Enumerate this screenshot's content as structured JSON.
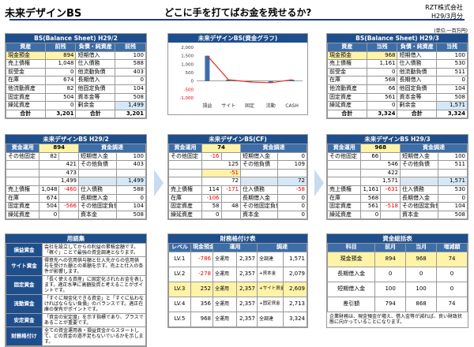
{
  "header": {
    "title": "未来デザインBS",
    "headline": "どこに手を打てばお金を残せるか?",
    "company": "RZT株式会社",
    "period": "H29/3月分",
    "unit": "(単位:一百万円)"
  },
  "bs_left": {
    "title": "BS(Balance Sheet)  H29/2",
    "cols": [
      "資産",
      "前残",
      "負債・純資産",
      "前残"
    ],
    "rows": [
      [
        "現金預金",
        "894",
        "短期借入",
        "100"
      ],
      [
        "売上債権",
        "1,048",
        "仕入債務",
        "588"
      ],
      [
        "前受金",
        "0",
        "他流動負債",
        "403"
      ],
      [
        "在庫",
        "674",
        "長期借入",
        "0"
      ],
      [
        "他流動資産",
        "82",
        "他固定負債",
        "104"
      ],
      [
        "固定資産",
        "504",
        "資本金等",
        "508"
      ],
      [
        "繰延資産",
        "0",
        "剰余金",
        "1,499"
      ],
      [
        "合計",
        "3,201",
        "合計",
        "3,201"
      ]
    ]
  },
  "bs_right": {
    "title": "BS(Balance Sheet)  H29/3",
    "cols": [
      "資産",
      "当残",
      "負債・純資産",
      "当残"
    ],
    "rows": [
      [
        "現金預金",
        "968",
        "短期借入",
        "100"
      ],
      [
        "売上債権",
        "1,161",
        "仕入債務",
        "530"
      ],
      [
        "前受金",
        "0",
        "他流動負債",
        "511"
      ],
      [
        "在庫",
        "568",
        "長期借入",
        "0"
      ],
      [
        "他流動資産",
        "66",
        "他固定負債",
        "104"
      ],
      [
        "固定資産",
        "561",
        "資本金等",
        "508"
      ],
      [
        "繰延資産",
        "0",
        "剰余金",
        "1,571"
      ],
      [
        "合計",
        "3,324",
        "合計",
        "3,324"
      ]
    ]
  },
  "graph": {
    "title": "未来デザインBS(資金グラフ)"
  },
  "chart_data": {
    "type": "bar",
    "categories": [
      "損益",
      "サイト",
      "固定",
      "流動",
      "CASH"
    ],
    "series": [
      {
        "name": "",
        "values": [
          1499,
          72,
          -57,
          -106,
          74
        ]
      }
    ],
    "line_values": [
      1499,
      72,
      -57,
      -106,
      74
    ],
    "ylim": [
      -1000,
      2000
    ],
    "yticks": [
      "2,000",
      "1,500",
      "1,000",
      "500",
      "0",
      "-500",
      "-1,000"
    ],
    "ytick_values": [
      2000,
      1500,
      1000,
      500,
      0,
      -500,
      -1000
    ]
  },
  "mid_left": {
    "title": "未来デザインBS  H29/2",
    "a_label": "資金運用",
    "a_val": "894",
    "b_label": "資金調達",
    "other_fixed": "82",
    "v421": "421",
    "tanki_label": "短期借入金",
    "tanki": "100",
    "ta_label": "その他負債",
    "ta": "403",
    "v473": "473",
    "v1499a": "1,499",
    "v1499b": "1,499",
    "uri_label": "売上債権",
    "uri_prev": "1,048",
    "uri_diff": "-460",
    "shi_label": "仕入債務",
    "shi": "588",
    "zai_label": "在庫",
    "zai": "674",
    "choki_label": "長期借入金",
    "choki": "0",
    "kotei_label": "固定資産",
    "kotei": "504",
    "kotei_diff": "-566",
    "tafu_label": "その他固定負債",
    "tafu": "104",
    "kurinobe_label": "繰延資産",
    "kurinobe": "0",
    "shihon_label": "資本金",
    "shihon": "508",
    "ofa_label": "その他固定"
  },
  "mid_center": {
    "title": "未来デザインBS(CF)",
    "a_label": "資金運用",
    "a_val": "74",
    "b_label": "資金調達",
    "ofa_label": "その他固定",
    "ofa": "-16",
    "v125": "125",
    "tanki_label": "短期借入金",
    "tanki": "0",
    "ta_label": "その他負債",
    "ta": "109",
    "v51": "-51",
    "v72a": "72",
    "v72b": "72",
    "uri_label": "売上債権",
    "uri": "114",
    "uri_diff": "-171",
    "shi_label": "仕入債務",
    "shi": "-58",
    "zai_label": "在庫",
    "zai": "-106",
    "choki_label": "長期借入金",
    "choki": "0",
    "kotei_label": "固定資産",
    "kotei": "58",
    "kotei_diff": "48",
    "tafu_label": "その他固定負債",
    "tafu": "0",
    "kurinobe_label": "繰延資産",
    "kurinobe": "0",
    "shihon_label": "資本金",
    "shihon": "0"
  },
  "mid_right": {
    "title": "未来デザインBS  H29/3",
    "a_label": "資金運用",
    "a_val": "968",
    "b_label": "資金調達",
    "ofa_label": "その他固定",
    "ofa": "66",
    "v546": "546",
    "tanki_label": "短期借入金",
    "tanki": "100",
    "ta_label": "その他負債",
    "ta": "511",
    "v422": "422",
    "v1571a": "1,571",
    "v1571b": "1,571",
    "uri_label": "売上債権",
    "uri": "1,161",
    "uri_diff": "-631",
    "shi_label": "仕入債務",
    "shi": "530",
    "zai_label": "在庫",
    "zai": "568",
    "choki_label": "長期借入金",
    "choki": "0",
    "kotei_label": "固定資産",
    "kotei": "561",
    "kotei_diff": "-518",
    "tafu_label": "その他固定負債",
    "tafu": "104",
    "kurinobe_label": "繰延資産",
    "kurinobe": "0",
    "shihon_label": "資本金",
    "shihon": "508"
  },
  "glossary": {
    "title": "用語集",
    "items": [
      {
        "term": "損益資金",
        "desc": "会社を設立してからの利益の累積金額です。「稼ぐ」ことで最強の資金調達となります。"
      },
      {
        "term": "サイト資金",
        "desc": "得意先への信用供与額と仕入先からの信用供与を受けた額との差額を示す。売上と仕入の条件が影響します。"
      },
      {
        "term": "固定資金",
        "desc": "「長く使える資産」に固定化されたお金を表します。適正水準に高額投資と考えることがポイントです。"
      },
      {
        "term": "流動資金",
        "desc": "「すぐに現金化できる資金」と「すぐに払わなければならない負債」のバランスです。適正在庫の保有がポイントです。"
      },
      {
        "term": "安定資金",
        "desc": "「資金の安定度」を示す指標であり、プラスであることが重要です。"
      },
      {
        "term": "財務格付け",
        "desc": "全ての資金運用表・損益資金からスタートして、どの資金の過不足もないでいるかを示します。"
      }
    ]
  },
  "rating": {
    "title": "財務格付け表",
    "cols": [
      "レベル",
      "現金預金",
      "運用",
      "",
      "調達",
      ""
    ],
    "rows": [
      {
        "lv": "LV.1",
        "cash": "-786",
        "op1": "全運用",
        "v1": "2,357",
        "op2": "全調達",
        "v2": "1,571"
      },
      {
        "lv": "LV.2",
        "cash": "-278",
        "op1": "全運用",
        "v1": "2,357",
        "op2": "+資本金",
        "v2": "2,079"
      },
      {
        "lv": "LV.3",
        "cash": "252",
        "op1": "全運用",
        "v1": "2,357",
        "op2": "+サイト資金",
        "v2": "2,609"
      },
      {
        "lv": "LV.4",
        "cash": "356",
        "op1": "全運用",
        "v1": "2,357",
        "op2": "+固定資金",
        "v2": "2,713"
      },
      {
        "lv": "LV.5",
        "cash": "968",
        "op1": "全運用",
        "v1": "2,357",
        "op2": "全調達",
        "v2": "3,324"
      }
    ]
  },
  "fund": {
    "title": "資金総括表",
    "cols": [
      "科目",
      "前月",
      "当月",
      "増減額"
    ],
    "rows": [
      [
        "現金預金",
        "894",
        "968",
        "74"
      ],
      [
        "長期借入金",
        "0",
        "0",
        "0"
      ],
      [
        "短期借入金",
        "100",
        "100",
        "0"
      ],
      [
        "差引額",
        "794",
        "868",
        "74"
      ]
    ],
    "note": "企業財務は、現金預金が増え、借入金等が減れば、良い財政状態に向かっていることになります。"
  }
}
